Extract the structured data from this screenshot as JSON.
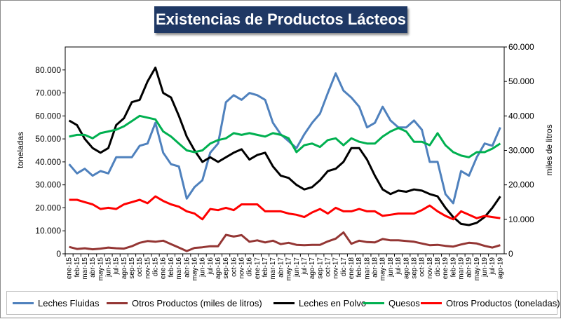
{
  "title": "Existencias de Productos Lácteos",
  "chart_data": {
    "type": "line",
    "title": "Existencias de Productos Lácteos",
    "ylabel": "toneladas",
    "y2label": "miles de litros",
    "ylim": [
      0,
      90000
    ],
    "y2lim": [
      0,
      60000
    ],
    "yticks": [
      "0",
      "10.000",
      "20.000",
      "30.000",
      "40.000",
      "50.000",
      "60.000",
      "70.000",
      "80.000"
    ],
    "y2ticks": [
      "0",
      "10.000",
      "20.000",
      "30.000",
      "40.000",
      "50.000",
      "60.000"
    ],
    "categories": [
      "ene-15",
      "feb-15",
      "mar-15",
      "abr-15",
      "may-15",
      "jun-15",
      "jul-15",
      "ago-15",
      "sep-15",
      "oct-15",
      "nov-15",
      "dic-15",
      "ene-16",
      "feb-16",
      "mar-16",
      "abr-16",
      "may-16",
      "jun-16",
      "jul-16",
      "ago-16",
      "sep-16",
      "oct-16",
      "nov-16",
      "dic-16",
      "ene-17",
      "feb-17",
      "mar-17",
      "abr-17",
      "may-17",
      "jun-17",
      "jul-17",
      "ago-17",
      "sep-17",
      "oct-17",
      "nov-17",
      "dic-17",
      "ene-18",
      "feb-18",
      "mar-18",
      "abr-18",
      "may-18",
      "jun-18",
      "jul-18",
      "ago-18",
      "sep-18",
      "oct-18",
      "nov-18",
      "dic-18",
      "ene-19",
      "feb-19",
      "mar-19",
      "abr-19",
      "may-19",
      "jun-19",
      "jul-19",
      "ago-19"
    ],
    "series": [
      {
        "name": "Leches Fluidas",
        "axis": "left",
        "color": "#4f81bd",
        "values": [
          39000,
          35000,
          37000,
          34000,
          36000,
          35000,
          42000,
          42000,
          42000,
          47000,
          48000,
          57000,
          44000,
          39000,
          38000,
          24000,
          29000,
          32000,
          44000,
          48000,
          66000,
          69000,
          67000,
          70000,
          69000,
          67000,
          57000,
          52000,
          49000,
          46000,
          52000,
          57000,
          61000,
          70000,
          78500,
          71000,
          68000,
          64000,
          55000,
          57000,
          64000,
          58000,
          55000,
          55000,
          58000,
          54000,
          40000,
          40000,
          26000,
          22000,
          36000,
          34000,
          42000,
          48000,
          47000,
          55000
        ]
      },
      {
        "name": "Otros Productos (miles de litros)",
        "axis": "right",
        "color": "#943634",
        "values": [
          2000,
          1400,
          1600,
          1300,
          1500,
          1800,
          1600,
          1500,
          2200,
          3200,
          3700,
          3500,
          3800,
          2800,
          1800,
          800,
          1700,
          1900,
          2200,
          2200,
          5500,
          5000,
          5400,
          3500,
          3900,
          3300,
          3800,
          2800,
          3200,
          2600,
          2500,
          2600,
          2600,
          3600,
          4400,
          6200,
          2900,
          3800,
          3400,
          3300,
          4300,
          3900,
          3900,
          3700,
          3500,
          3000,
          2500,
          2600,
          2300,
          2100,
          2700,
          3200,
          3000,
          2300,
          1800,
          2500
        ]
      },
      {
        "name": "Leches en Polvo",
        "axis": "left",
        "color": "#000000",
        "values": [
          58000,
          56000,
          50000,
          46000,
          44000,
          46000,
          56000,
          59000,
          66000,
          67000,
          75000,
          81000,
          70000,
          68000,
          60000,
          51000,
          45000,
          40000,
          42000,
          40000,
          42000,
          44000,
          45500,
          41000,
          43000,
          44000,
          38000,
          34000,
          33000,
          30000,
          28000,
          29000,
          32000,
          36000,
          37000,
          40000,
          46000,
          46000,
          41000,
          34000,
          28000,
          26000,
          27500,
          27000,
          28000,
          27500,
          26000,
          25000,
          20000,
          16000,
          13000,
          12500,
          13500,
          16000,
          20000,
          25000
        ]
      },
      {
        "name": "Quesos",
        "axis": "right",
        "color": "#00b050",
        "values": [
          34000,
          34500,
          34500,
          33500,
          35000,
          35500,
          36000,
          37000,
          38500,
          40000,
          39500,
          39000,
          35500,
          34000,
          32000,
          30000,
          29500,
          30000,
          32000,
          33000,
          33500,
          35000,
          34500,
          35000,
          34500,
          34000,
          35000,
          34500,
          33500,
          29500,
          31500,
          32000,
          31000,
          33000,
          33500,
          31500,
          33500,
          32500,
          32000,
          32000,
          34000,
          35500,
          36500,
          35500,
          32500,
          32500,
          31500,
          35000,
          31500,
          29500,
          28500,
          28000,
          29500,
          29500,
          30500,
          32000
        ]
      },
      {
        "name": "Otros Productos (toneladas)",
        "axis": "left",
        "color": "#ff0000",
        "values": [
          23500,
          23500,
          22500,
          21500,
          19500,
          20000,
          19500,
          21500,
          22500,
          23500,
          22000,
          25000,
          23000,
          21500,
          20500,
          18500,
          17500,
          15000,
          19500,
          19000,
          20000,
          19000,
          21500,
          21500,
          21500,
          18500,
          18500,
          18500,
          17500,
          17000,
          16000,
          18000,
          19500,
          17500,
          20000,
          18500,
          18500,
          19500,
          18500,
          18500,
          16500,
          17000,
          17500,
          17500,
          17500,
          19000,
          21000,
          18500,
          16500,
          15000,
          18500,
          17000,
          15500,
          16500,
          16000,
          15500
        ]
      }
    ]
  }
}
